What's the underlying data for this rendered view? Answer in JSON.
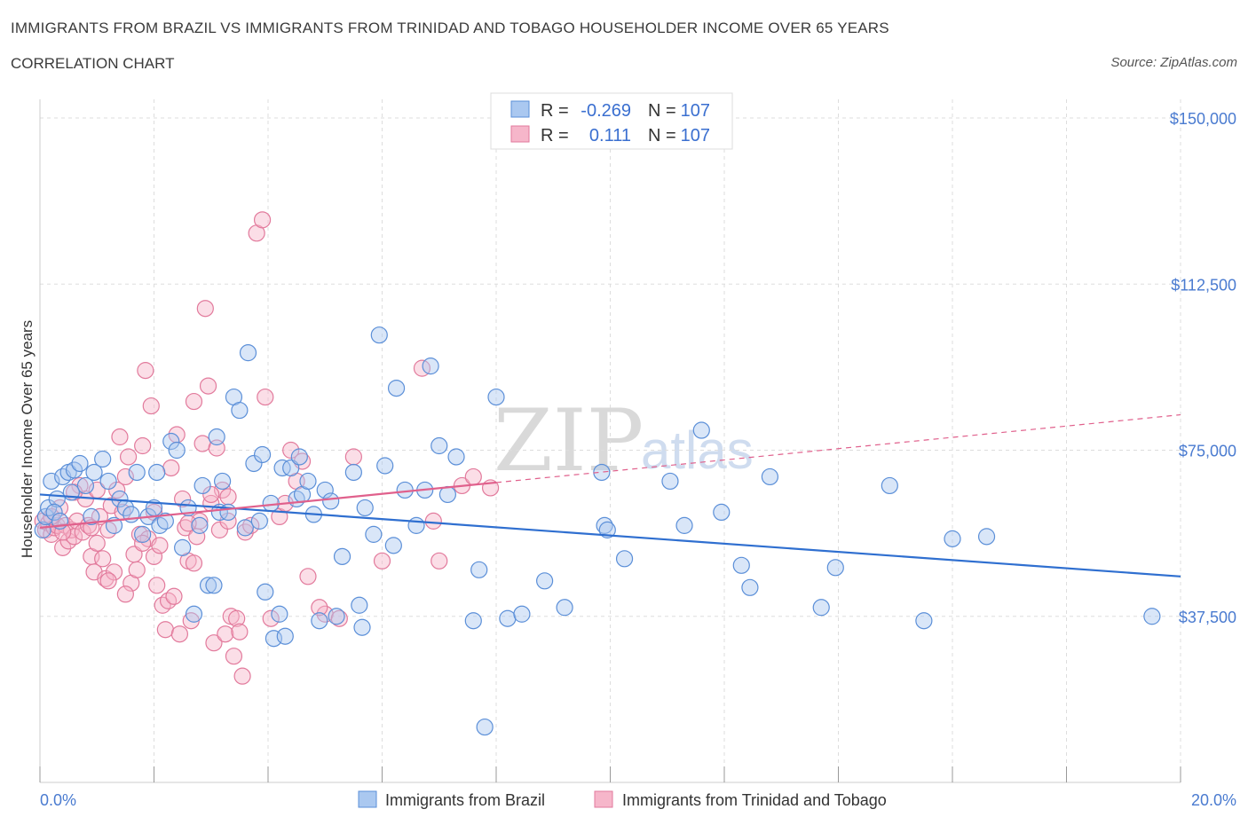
{
  "header": {
    "title": "IMMIGRANTS FROM BRAZIL VS IMMIGRANTS FROM TRINIDAD AND TOBAGO HOUSEHOLDER INCOME OVER 65 YEARS",
    "subtitle": "CORRELATION CHART",
    "source": "Source: ZipAtlas.com"
  },
  "stats": {
    "r_label": "R =",
    "n_label": "N =",
    "brazil": {
      "r": "-0.269",
      "n": "107"
    },
    "trinidad": {
      "r": "0.111",
      "n": "107"
    }
  },
  "watermark": {
    "zip": "ZIP",
    "atlas": "atlas"
  },
  "colors": {
    "brazil_fill": "#aac8f0",
    "brazil_stroke": "#5b8fd8",
    "brazil_line": "#2f6fd0",
    "trinidad_fill": "#f6b6ca",
    "trinidad_stroke": "#e27a9c",
    "trinidad_line": "#e0608c",
    "axis_text": "#4a7bd0",
    "grid": "#dddddd"
  },
  "chart_data": {
    "type": "scatter",
    "title": "IMMIGRANTS FROM BRAZIL VS IMMIGRANTS FROM TRINIDAD AND TOBAGO HOUSEHOLDER INCOME OVER 65 YEARS",
    "xlabel": "",
    "ylabel": "Householder Income Over 65 years",
    "xlim": [
      0,
      20
    ],
    "ylim": [
      0,
      150000
    ],
    "x_tick_labels": [
      "0.0%",
      "20.0%"
    ],
    "y_ticks": [
      37500,
      75000,
      112500,
      150000
    ],
    "y_tick_labels": [
      "$37,500",
      "$75,000",
      "$112,500",
      "$150,000"
    ],
    "grid": true,
    "legend_position": "bottom-center",
    "series": [
      {
        "name": "Immigrants from Brazil",
        "trend": {
          "x": [
            0,
            20
          ],
          "y": [
            65000,
            46500
          ],
          "style": "solid"
        },
        "points": [
          [
            0.05,
            57000
          ],
          [
            0.1,
            60000
          ],
          [
            0.15,
            62000
          ],
          [
            0.2,
            68000
          ],
          [
            0.3,
            64000
          ],
          [
            0.4,
            69000
          ],
          [
            0.5,
            70000
          ],
          [
            0.6,
            70500
          ],
          [
            0.7,
            72000
          ],
          [
            0.8,
            67000
          ],
          [
            0.9,
            60000
          ],
          [
            0.95,
            70000
          ],
          [
            1.1,
            73000
          ],
          [
            1.2,
            68000
          ],
          [
            1.3,
            58000
          ],
          [
            1.4,
            64000
          ],
          [
            1.5,
            62000
          ],
          [
            1.6,
            60500
          ],
          [
            1.7,
            70000
          ],
          [
            1.8,
            56000
          ],
          [
            1.9,
            60000
          ],
          [
            2.0,
            62000
          ],
          [
            2.05,
            70000
          ],
          [
            2.1,
            58000
          ],
          [
            2.2,
            59000
          ],
          [
            2.3,
            77000
          ],
          [
            2.4,
            75000
          ],
          [
            2.5,
            53000
          ],
          [
            2.6,
            62000
          ],
          [
            2.7,
            38000
          ],
          [
            2.8,
            58000
          ],
          [
            2.85,
            67000
          ],
          [
            2.95,
            44500
          ],
          [
            3.05,
            44500
          ],
          [
            3.1,
            78000
          ],
          [
            3.15,
            61000
          ],
          [
            3.2,
            68000
          ],
          [
            3.3,
            61000
          ],
          [
            3.4,
            87000
          ],
          [
            3.5,
            84000
          ],
          [
            3.6,
            57500
          ],
          [
            3.65,
            97000
          ],
          [
            3.75,
            72000
          ],
          [
            3.85,
            59000
          ],
          [
            3.9,
            74000
          ],
          [
            3.95,
            43000
          ],
          [
            4.05,
            63000
          ],
          [
            4.1,
            32500
          ],
          [
            4.2,
            38000
          ],
          [
            4.25,
            71000
          ],
          [
            4.3,
            33000
          ],
          [
            4.4,
            71000
          ],
          [
            4.5,
            64000
          ],
          [
            4.55,
            73500
          ],
          [
            4.6,
            65000
          ],
          [
            4.7,
            68000
          ],
          [
            4.8,
            60500
          ],
          [
            4.9,
            36500
          ],
          [
            5.0,
            66000
          ],
          [
            5.1,
            63500
          ],
          [
            5.2,
            37500
          ],
          [
            5.3,
            51000
          ],
          [
            5.5,
            70000
          ],
          [
            5.6,
            40000
          ],
          [
            5.65,
            35000
          ],
          [
            5.7,
            62000
          ],
          [
            5.85,
            56000
          ],
          [
            5.95,
            101000
          ],
          [
            6.05,
            71500
          ],
          [
            6.2,
            53500
          ],
          [
            6.25,
            89000
          ],
          [
            6.4,
            66000
          ],
          [
            6.6,
            58000
          ],
          [
            6.75,
            66000
          ],
          [
            6.85,
            94000
          ],
          [
            7.0,
            76000
          ],
          [
            7.15,
            65000
          ],
          [
            7.3,
            73500
          ],
          [
            7.6,
            36500
          ],
          [
            7.7,
            48000
          ],
          [
            7.8,
            12500
          ],
          [
            8.0,
            87000
          ],
          [
            8.2,
            37000
          ],
          [
            8.45,
            38000
          ],
          [
            8.85,
            45500
          ],
          [
            9.2,
            39500
          ],
          [
            9.85,
            70000
          ],
          [
            9.9,
            58000
          ],
          [
            9.95,
            57000
          ],
          [
            10.25,
            50500
          ],
          [
            11.05,
            68000
          ],
          [
            11.3,
            58000
          ],
          [
            11.6,
            79500
          ],
          [
            11.95,
            61000
          ],
          [
            12.3,
            49000
          ],
          [
            12.45,
            44000
          ],
          [
            12.8,
            69000
          ],
          [
            13.7,
            39500
          ],
          [
            13.95,
            48500
          ],
          [
            14.9,
            67000
          ],
          [
            15.5,
            36500
          ],
          [
            16.0,
            55000
          ],
          [
            16.6,
            55500
          ],
          [
            19.5,
            37500
          ],
          [
            0.25,
            61000
          ],
          [
            0.35,
            59000
          ],
          [
            0.55,
            65500
          ]
        ]
      },
      {
        "name": "Immigrants from Trinidad and Tobago",
        "trend": {
          "x": [
            0,
            20
          ],
          "y": [
            57500,
            83000
          ],
          "solid_until_x": 8,
          "style": "solid-then-dashed"
        },
        "points": [
          [
            0.05,
            59000
          ],
          [
            0.1,
            57000
          ],
          [
            0.15,
            58500
          ],
          [
            0.2,
            56000
          ],
          [
            0.25,
            57500
          ],
          [
            0.3,
            58000
          ],
          [
            0.35,
            62000
          ],
          [
            0.4,
            53000
          ],
          [
            0.45,
            58000
          ],
          [
            0.5,
            54500
          ],
          [
            0.55,
            57000
          ],
          [
            0.6,
            55500
          ],
          [
            0.65,
            59000
          ],
          [
            0.7,
            67000
          ],
          [
            0.75,
            56500
          ],
          [
            0.8,
            64000
          ],
          [
            0.85,
            58000
          ],
          [
            0.9,
            51000
          ],
          [
            0.95,
            47500
          ],
          [
            1.0,
            54000
          ],
          [
            1.05,
            60000
          ],
          [
            1.1,
            50500
          ],
          [
            1.15,
            46000
          ],
          [
            1.2,
            57000
          ],
          [
            1.25,
            62500
          ],
          [
            1.3,
            47500
          ],
          [
            1.35,
            66000
          ],
          [
            1.4,
            78000
          ],
          [
            1.45,
            61000
          ],
          [
            1.5,
            69000
          ],
          [
            1.55,
            73500
          ],
          [
            1.6,
            45000
          ],
          [
            1.65,
            51500
          ],
          [
            1.7,
            48000
          ],
          [
            1.75,
            56000
          ],
          [
            1.8,
            76000
          ],
          [
            1.85,
            93000
          ],
          [
            1.9,
            55000
          ],
          [
            1.95,
            85000
          ],
          [
            2.0,
            51000
          ],
          [
            2.05,
            44500
          ],
          [
            2.1,
            53500
          ],
          [
            2.15,
            40000
          ],
          [
            2.2,
            34500
          ],
          [
            2.25,
            41000
          ],
          [
            2.3,
            71000
          ],
          [
            2.35,
            42000
          ],
          [
            2.4,
            78500
          ],
          [
            2.45,
            33500
          ],
          [
            2.5,
            64000
          ],
          [
            2.55,
            57500
          ],
          [
            2.6,
            50000
          ],
          [
            2.65,
            36500
          ],
          [
            2.7,
            86000
          ],
          [
            2.75,
            55500
          ],
          [
            2.8,
            59000
          ],
          [
            2.85,
            76500
          ],
          [
            2.9,
            107000
          ],
          [
            2.95,
            89500
          ],
          [
            3.0,
            63000
          ],
          [
            3.05,
            31500
          ],
          [
            3.1,
            75500
          ],
          [
            3.15,
            57000
          ],
          [
            3.2,
            66000
          ],
          [
            3.25,
            33500
          ],
          [
            3.3,
            64500
          ],
          [
            3.35,
            37500
          ],
          [
            3.4,
            28500
          ],
          [
            3.45,
            37000
          ],
          [
            3.5,
            34000
          ],
          [
            3.55,
            24000
          ],
          [
            3.6,
            56500
          ],
          [
            3.7,
            58000
          ],
          [
            3.8,
            124000
          ],
          [
            3.9,
            127000
          ],
          [
            3.95,
            87000
          ],
          [
            4.05,
            37000
          ],
          [
            4.2,
            60000
          ],
          [
            4.4,
            75000
          ],
          [
            4.5,
            68000
          ],
          [
            4.6,
            72500
          ],
          [
            4.7,
            46500
          ],
          [
            5.0,
            38000
          ],
          [
            5.25,
            37000
          ],
          [
            5.5,
            73500
          ],
          [
            6.0,
            50000
          ],
          [
            6.7,
            93500
          ],
          [
            7.0,
            50000
          ],
          [
            7.4,
            67000
          ],
          [
            7.6,
            69000
          ],
          [
            7.9,
            66500
          ],
          [
            4.3,
            63000
          ],
          [
            3.0,
            65000
          ],
          [
            2.0,
            61000
          ],
          [
            1.0,
            66000
          ],
          [
            0.6,
            65500
          ],
          [
            0.4,
            56500
          ],
          [
            0.2,
            60000
          ],
          [
            1.2,
            45500
          ],
          [
            1.5,
            42500
          ],
          [
            2.6,
            58500
          ],
          [
            3.3,
            59000
          ],
          [
            0.9,
            57500
          ],
          [
            1.8,
            54000
          ],
          [
            2.7,
            49500
          ],
          [
            4.9,
            39500
          ],
          [
            6.9,
            59000
          ]
        ]
      }
    ]
  },
  "legend": {
    "brazil": "Immigrants from Brazil",
    "trinidad": "Immigrants from Trinidad and Tobago"
  }
}
